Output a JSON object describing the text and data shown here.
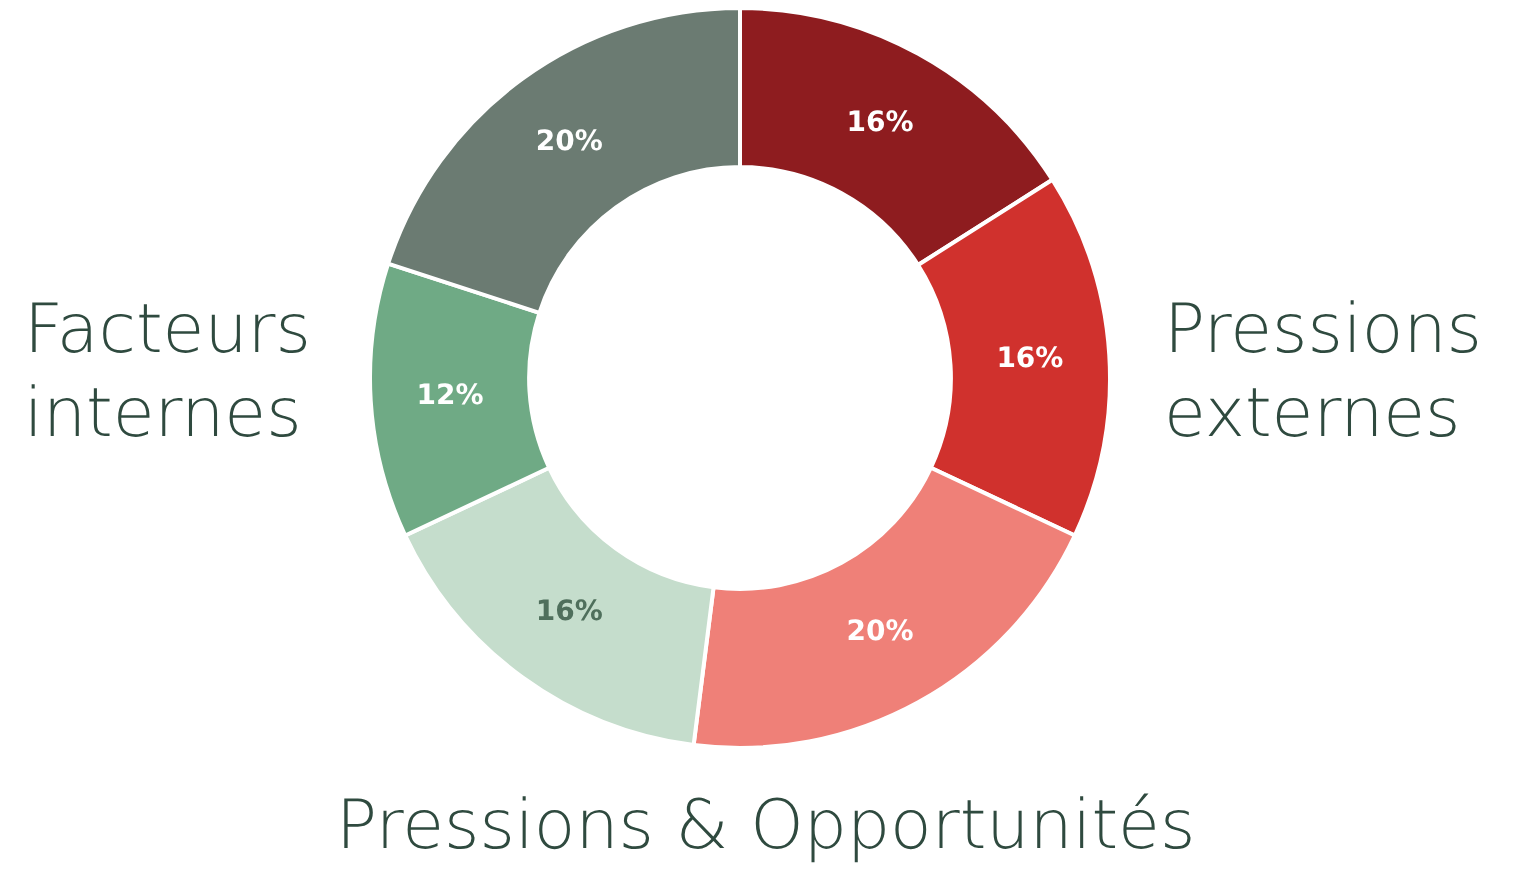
{
  "chart_data": {
    "type": "donut",
    "categories": [
      null,
      null,
      null,
      null,
      null,
      null
    ],
    "values": [
      16,
      16,
      20,
      16,
      12,
      20
    ],
    "colors": [
      "#8e1c1f",
      "#d0312d",
      "#ef8078",
      "#c5ddcc",
      "#6faa85",
      "#6b7b72"
    ],
    "value_labels": [
      "16%",
      "16%",
      "20%",
      "16%",
      "12%",
      "20%"
    ],
    "legend": false,
    "annotations": [
      "Pressions\nexternes",
      "Pressions & Opportunités",
      "Facteurs\ninternes"
    ]
  }
}
